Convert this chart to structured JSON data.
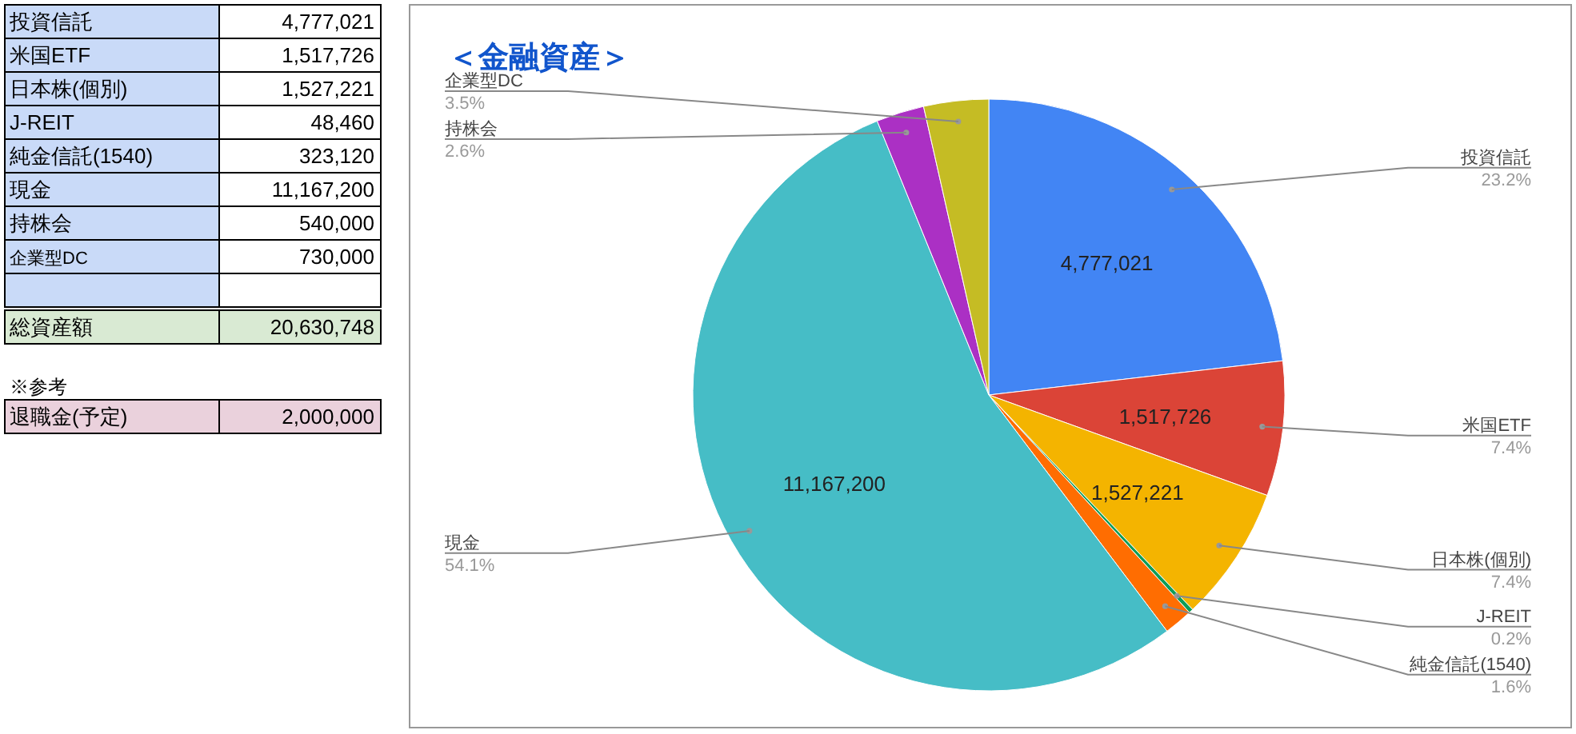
{
  "chart_data": {
    "type": "pie",
    "title": "＜金融資産＞",
    "categories": [
      "投資信託",
      "米国ETF",
      "日本株(個別)",
      "J-REIT",
      "純金信託(1540)",
      "現金",
      "持株会",
      "企業型DC"
    ],
    "values": [
      4777021,
      1517726,
      1527221,
      48460,
      323120,
      11167200,
      540000,
      730000
    ],
    "value_labels": [
      "4,777,021",
      "1,517,726",
      "1,527,221",
      null,
      null,
      "11,167,200",
      null,
      null
    ],
    "colors": [
      "#4285f4",
      "#db4437",
      "#f4b400",
      "#0f9d58",
      "#ff6d01",
      "#46bdc6",
      "#ab30c4",
      "#c5bc24"
    ],
    "annotations": [
      {
        "text": "23.2%",
        "x": "投資信託"
      },
      {
        "text": "7.4%",
        "x": "米国ETF"
      },
      {
        "text": "7.4%",
        "x": "日本株(個別)"
      },
      {
        "text": "0.2%",
        "x": "J-REIT"
      },
      {
        "text": "1.6%",
        "x": "純金信託(1540)"
      },
      {
        "text": "54.1%",
        "x": "現金"
      },
      {
        "text": "2.6%",
        "x": "持株会"
      },
      {
        "text": "3.5%",
        "x": "企業型DC"
      },
      "4,777,021",
      "1,517,726",
      "1,527,221",
      "48,460",
      "323,120",
      "11,167,200",
      "540,000",
      "730,000",
      "総資産額",
      "20,630,748",
      "※参考",
      "退職金(予定)",
      "2,000,000"
    ]
  }
}
